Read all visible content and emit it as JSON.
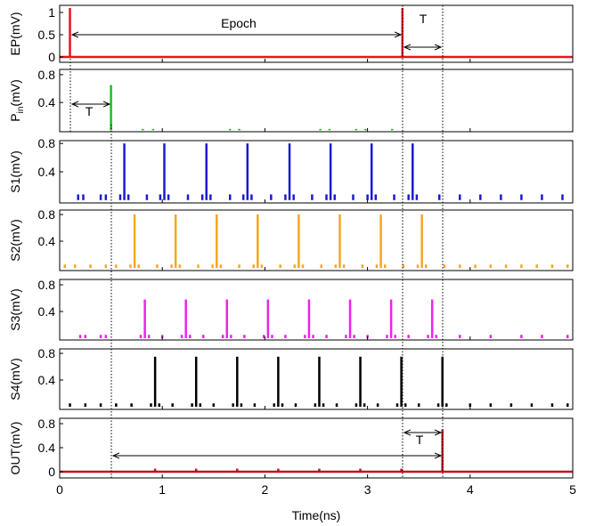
{
  "chart_data": [
    {
      "type": "stem",
      "ylabel": "EP(mV)",
      "color": "#e8141c",
      "baseline": true,
      "ylim": [
        -0.12,
        1.16
      ],
      "yticks": [
        0,
        0.5,
        1
      ],
      "x": [
        0.1,
        3.34
      ],
      "values": [
        1.1,
        1.1
      ],
      "annotations": [
        "Epoch",
        "T"
      ]
    },
    {
      "type": "stem",
      "ylabel": "P",
      "ylabel_sub": "in",
      "ylabel_unit": "(mV)",
      "color": "#1fbf1f",
      "ylim": [
        -0.02,
        0.875
      ],
      "yticks": [
        0.4,
        0.8
      ],
      "x": [
        0.5,
        0.81,
        0.91,
        1.66,
        1.75,
        2.54,
        2.63,
        2.89,
        2.98,
        3.24
      ],
      "values": [
        0.65,
        0.02,
        0.02,
        0.02,
        0.02,
        0.02,
        0.02,
        0.02,
        0.02,
        0.02
      ],
      "annotations": [
        "T"
      ]
    },
    {
      "type": "stem",
      "ylabel": "S1(mV)",
      "color": "#1a1ad0",
      "ylim": [
        -0.04,
        0.84
      ],
      "yticks": [
        0.4,
        0.8
      ],
      "x": [
        0.18,
        0.23,
        0.4,
        0.45,
        0.59,
        0.63,
        0.67,
        0.85,
        0.98,
        1.02,
        1.06,
        1.25,
        1.39,
        1.43,
        1.47,
        1.66,
        1.79,
        1.83,
        1.87,
        2.06,
        2.2,
        2.24,
        2.28,
        2.46,
        2.6,
        2.64,
        2.68,
        2.86,
        3.0,
        3.04,
        3.08,
        3.26,
        3.4,
        3.44,
        3.48,
        3.7,
        3.9,
        4.1,
        4.3,
        4.5,
        4.7,
        4.9
      ],
      "values": [
        0.08,
        0.08,
        0.08,
        0.08,
        0.08,
        0.8,
        0.08,
        0.08,
        0.08,
        0.8,
        0.08,
        0.08,
        0.08,
        0.8,
        0.08,
        0.08,
        0.08,
        0.8,
        0.08,
        0.08,
        0.08,
        0.8,
        0.08,
        0.08,
        0.08,
        0.8,
        0.08,
        0.08,
        0.08,
        0.8,
        0.08,
        0.08,
        0.08,
        0.8,
        0.08,
        0.08,
        0.08,
        0.08,
        0.08,
        0.08,
        0.08,
        0.08
      ]
    },
    {
      "type": "stem",
      "ylabel": "S2(mV)",
      "color": "#f5a623",
      "ylim": [
        -0.04,
        0.867
      ],
      "yticks": [
        0.4,
        0.8
      ],
      "x": [
        0.05,
        0.15,
        0.3,
        0.45,
        0.55,
        0.69,
        0.73,
        0.77,
        0.95,
        1.09,
        1.13,
        1.17,
        1.35,
        1.49,
        1.53,
        1.57,
        1.75,
        1.89,
        1.93,
        1.97,
        2.15,
        2.29,
        2.33,
        2.37,
        2.55,
        2.69,
        2.73,
        2.77,
        2.95,
        3.09,
        3.13,
        3.17,
        3.35,
        3.49,
        3.53,
        3.57,
        3.75,
        3.9,
        4.05,
        4.2,
        4.35,
        4.5,
        4.65,
        4.8,
        4.95
      ],
      "values": [
        0.05,
        0.05,
        0.05,
        0.05,
        0.05,
        0.05,
        0.8,
        0.05,
        0.05,
        0.05,
        0.8,
        0.05,
        0.05,
        0.05,
        0.8,
        0.05,
        0.05,
        0.05,
        0.8,
        0.05,
        0.05,
        0.05,
        0.8,
        0.05,
        0.05,
        0.05,
        0.8,
        0.05,
        0.05,
        0.05,
        0.8,
        0.05,
        0.05,
        0.05,
        0.8,
        0.05,
        0.05,
        0.05,
        0.05,
        0.05,
        0.05,
        0.05,
        0.05,
        0.05,
        0.05
      ]
    },
    {
      "type": "stem",
      "ylabel": "S3(mV)",
      "color": "#ee22ee",
      "ylim": [
        -0.027,
        0.88
      ],
      "yticks": [
        0.4,
        0.8
      ],
      "x": [
        0.2,
        0.25,
        0.4,
        0.45,
        0.79,
        0.83,
        0.87,
        1.0,
        1.19,
        1.23,
        1.27,
        1.4,
        1.59,
        1.63,
        1.67,
        1.8,
        1.99,
        2.03,
        2.07,
        2.2,
        2.39,
        2.43,
        2.47,
        2.6,
        2.79,
        2.83,
        2.87,
        3.0,
        3.19,
        3.23,
        3.27,
        3.4,
        3.59,
        3.63,
        3.67,
        3.9,
        4.2,
        4.5,
        4.7,
        4.95
      ],
      "values": [
        0.05,
        0.05,
        0.05,
        0.05,
        0.05,
        0.58,
        0.05,
        0.05,
        0.05,
        0.58,
        0.05,
        0.05,
        0.05,
        0.58,
        0.05,
        0.05,
        0.05,
        0.58,
        0.05,
        0.05,
        0.05,
        0.58,
        0.05,
        0.05,
        0.05,
        0.58,
        0.05,
        0.05,
        0.05,
        0.58,
        0.05,
        0.05,
        0.05,
        0.58,
        0.05,
        0.05,
        0.05,
        0.05,
        0.05,
        0.05
      ]
    },
    {
      "type": "stem",
      "ylabel": "S4(mV)",
      "color": "#000000",
      "ylim": [
        -0.04,
        0.867
      ],
      "yticks": [
        0.4,
        0.8
      ],
      "x": [
        0.1,
        0.25,
        0.4,
        0.55,
        0.7,
        0.89,
        0.93,
        0.97,
        1.1,
        1.29,
        1.33,
        1.37,
        1.5,
        1.69,
        1.73,
        1.77,
        1.9,
        2.09,
        2.13,
        2.17,
        2.3,
        2.49,
        2.53,
        2.57,
        2.7,
        2.89,
        2.93,
        2.97,
        3.1,
        3.29,
        3.33,
        3.37,
        3.5,
        3.69,
        3.73,
        3.77,
        4.0,
        4.2,
        4.4,
        4.6,
        4.8,
        4.95
      ],
      "values": [
        0.05,
        0.05,
        0.05,
        0.05,
        0.05,
        0.05,
        0.75,
        0.05,
        0.05,
        0.05,
        0.75,
        0.05,
        0.05,
        0.05,
        0.75,
        0.05,
        0.05,
        0.05,
        0.75,
        0.05,
        0.05,
        0.05,
        0.75,
        0.05,
        0.05,
        0.05,
        0.75,
        0.05,
        0.05,
        0.05,
        0.75,
        0.05,
        0.05,
        0.05,
        0.75,
        0.05,
        0.05,
        0.05,
        0.05,
        0.05,
        0.05,
        0.05
      ]
    },
    {
      "type": "stem",
      "ylabel": "OUT(mV)",
      "color": "#c0141c",
      "baseline": true,
      "ylim": [
        -0.104,
        0.889
      ],
      "yticks": [
        0,
        0.4,
        0.8
      ],
      "x": [
        0.93,
        1.33,
        1.73,
        2.13,
        2.53,
        2.93,
        3.33,
        3.73
      ],
      "values": [
        0.05,
        0.05,
        0.05,
        0.05,
        0.05,
        0.05,
        0.05,
        0.7
      ],
      "xlim": [
        0,
        5
      ],
      "xticks": [
        0,
        1,
        2,
        3,
        4,
        5
      ],
      "xlabel": "Time(ns)",
      "annotations": [
        "T"
      ]
    }
  ]
}
